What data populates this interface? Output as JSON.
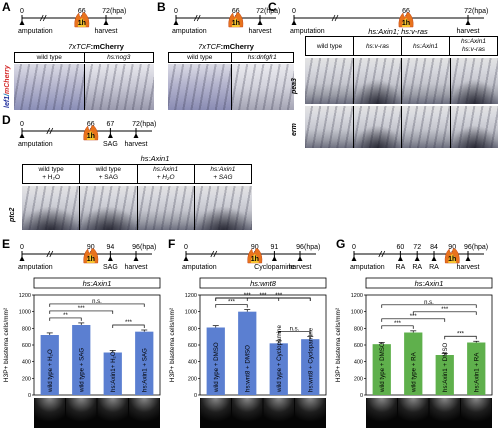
{
  "panels": {
    "A": {
      "letter": "A",
      "timeline": {
        "t0": "0",
        "t1": "66",
        "t2": "72",
        "unit": "(hpa)",
        "start": "amputation",
        "end": "harvest",
        "heat": "1h"
      },
      "title_part1": "7xTCF",
      "title_part2": ":mCherry",
      "columns": [
        "wild type",
        "hs:nog3"
      ],
      "side_label": [
        "lef1",
        "/",
        "mCherry"
      ]
    },
    "B": {
      "letter": "B",
      "timeline": {
        "t0": "0",
        "t1": "66",
        "t2": "72",
        "unit": "(hpa)",
        "start": "amputation",
        "end": "harvest",
        "heat": "1h"
      },
      "title_part1": "7xTCF",
      "title_part2": ":mCherry",
      "columns": [
        "wild type",
        "hs:dnfgfr1"
      ]
    },
    "C": {
      "letter": "C",
      "timeline": {
        "t0": "0",
        "t1": "66",
        "t2": "72",
        "unit": "(hpa)",
        "start": "amputation",
        "end": "harvest",
        "heat": "1h"
      },
      "title": "hs:Axin1; hs:v-ras",
      "columns": [
        "wild type",
        "hs:v-ras",
        "hs:Axin1",
        "hs:Axin1\nhs:v-ras"
      ],
      "row_labels": [
        "pea3",
        "erm"
      ]
    },
    "D": {
      "letter": "D",
      "timeline": {
        "t0": "0",
        "t1": "66",
        "t1b": "67",
        "t2": "72",
        "unit": "(hpa)",
        "start": "amputation",
        "mid": "SAG",
        "end": "harvest",
        "heat": "1h"
      },
      "title": "hs:Axin1",
      "columns": [
        "wild type\n+ H₂O",
        "wild type\n+ SAG",
        "hs:Axin1\n+ H₂O",
        "hs:Axin1\n+ SAG"
      ],
      "row_label": "ptc2"
    },
    "E": {
      "letter": "E",
      "timeline": {
        "t0": "0",
        "t1": "90",
        "t1b": "94",
        "t2": "96",
        "unit": "(hpa)",
        "start": "amputation",
        "mid": "SAG",
        "end": "harvest",
        "heat": "1h"
      },
      "title": "hs:Axin1"
    },
    "F": {
      "letter": "F",
      "timeline": {
        "t0": "0",
        "t1": "90",
        "t1b": "91",
        "t2": "96",
        "unit": "(hpa)",
        "start": "amputation",
        "mid": "Cyclopamine",
        "end": "harvest",
        "heat": "1h"
      },
      "title": "hs:wnt8"
    },
    "G": {
      "letter": "G",
      "timeline": {
        "t0": "0",
        "ta": "60",
        "tb": "72",
        "tc": "84",
        "t1": "90",
        "t2": "96(hpa)",
        "start": "amputation",
        "ra": "RA",
        "end": "harvest",
        "heat": "1h"
      },
      "title": "hs:Axin1"
    }
  },
  "chart_data": [
    {
      "type": "bar",
      "panel": "E",
      "title": "hs:Axin1",
      "ylabel": "H3P+ blastema cells/mm²",
      "ylim": [
        0,
        1200
      ],
      "yticks": [
        0,
        200,
        400,
        600,
        800,
        1000,
        1200
      ],
      "categories": [
        "wild type + H₂O",
        "wild type + SAG",
        "hs:Axin1+ H₂O",
        "hs:Axin1 + SAG"
      ],
      "values": [
        720,
        840,
        510,
        760
      ],
      "errors": [
        25,
        25,
        25,
        20
      ],
      "bar_color": "#5b7fd1",
      "significance": [
        {
          "label": "**",
          "from": 0,
          "to": 1
        },
        {
          "label": "***",
          "from": 2,
          "to": 3
        },
        {
          "label": "***",
          "from": 0,
          "to": 2
        },
        {
          "label": "n.s.",
          "from": 0,
          "to": 3
        }
      ]
    },
    {
      "type": "bar",
      "panel": "F",
      "title": "hs:wnt8",
      "ylabel": "H3P+ blastema cells/mm²",
      "ylim": [
        0,
        1200
      ],
      "yticks": [
        0,
        200,
        400,
        600,
        800,
        1000,
        1200
      ],
      "categories": [
        "wild type + DMSO",
        "hs:wnt8 + DMSO",
        "wild type + Cyclopamine",
        "hs:wnt8 + Cyclopamine"
      ],
      "values": [
        810,
        1000,
        620,
        670
      ],
      "errors": [
        22,
        25,
        30,
        30
      ],
      "bar_color": "#5b7fd1",
      "significance": [
        {
          "label": "***",
          "from": 0,
          "to": 1
        },
        {
          "label": "n.s.",
          "from": 2,
          "to": 3
        },
        {
          "label": "***",
          "from": 0,
          "to": 2
        },
        {
          "label": "***",
          "from": 1,
          "to": 3
        },
        {
          "label": "***",
          "from": 0,
          "to": 3
        }
      ]
    },
    {
      "type": "bar",
      "panel": "G",
      "title": "hs:Axin1",
      "ylabel": "H3P+ blastema cells/mm²",
      "ylim": [
        0,
        1200
      ],
      "yticks": [
        0,
        200,
        400,
        600,
        800,
        1000,
        1200
      ],
      "categories": [
        "wild type + DMSO",
        "wild type + RA",
        "hs:Axin1 + DMSO",
        "hs:Axin1 + RA"
      ],
      "values": [
        610,
        750,
        480,
        630
      ],
      "errors": [
        20,
        20,
        20,
        15
      ],
      "bar_color": "#5fb04c",
      "significance": [
        {
          "label": "***",
          "from": 0,
          "to": 1
        },
        {
          "label": "***",
          "from": 2,
          "to": 3
        },
        {
          "label": "***",
          "from": 0,
          "to": 2
        },
        {
          "label": "***",
          "from": 1,
          "to": 3
        },
        {
          "label": "n.s.",
          "from": 0,
          "to": 3
        }
      ]
    }
  ]
}
